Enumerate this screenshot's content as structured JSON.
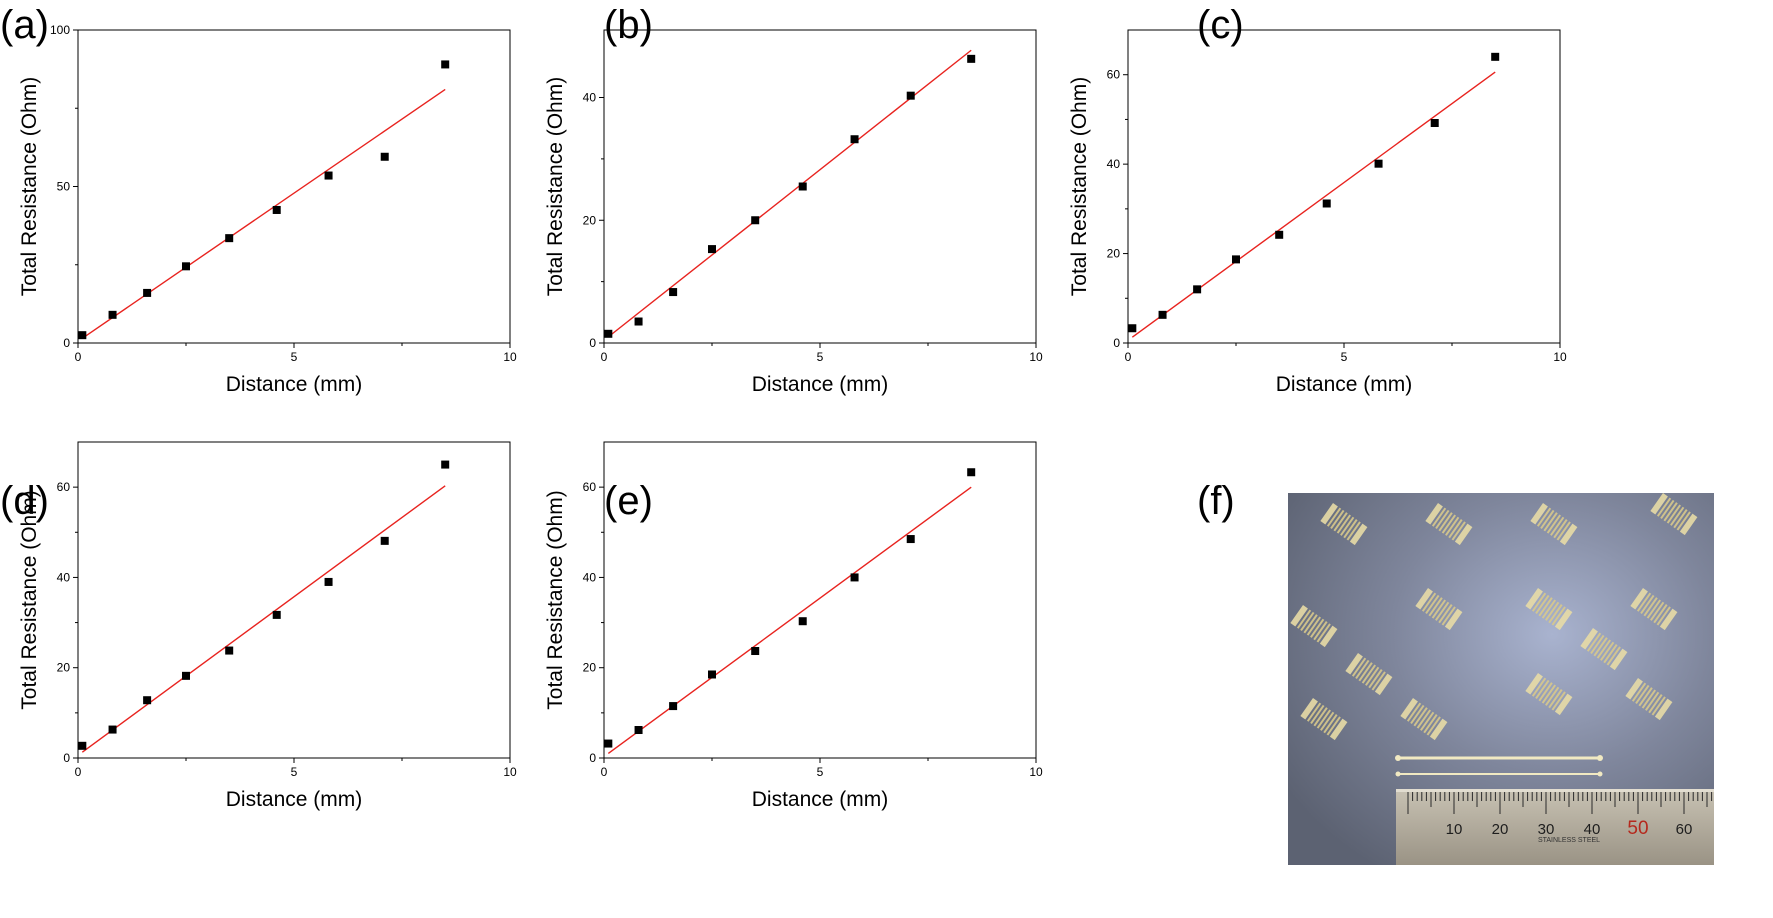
{
  "panels": [
    {
      "letter": "(a)"
    },
    {
      "letter": "(b)"
    },
    {
      "letter": "(c)"
    },
    {
      "letter": "(d)"
    },
    {
      "letter": "(e)"
    },
    {
      "letter": "(f)"
    }
  ],
  "colors": {
    "fit_line": "#e8231f",
    "points": "#000000"
  },
  "photo": {
    "ruler_ticks": [
      "10",
      "20",
      "30",
      "40",
      "50",
      "60"
    ],
    "ruler_text": "STAINLESS STEEL",
    "ruler_highlight_color": "#b5291d"
  },
  "chart_data": [
    {
      "type": "scatter",
      "panel": "(a)",
      "xlabel": "Distance (mm)",
      "ylabel": "Total Resistance (Ohm)",
      "xlim": [
        0,
        10
      ],
      "ylim": [
        0,
        100
      ],
      "xticks": [
        0,
        5,
        10
      ],
      "yticks": [
        0,
        50,
        100
      ],
      "x": [
        0.1,
        0.8,
        1.6,
        2.5,
        3.5,
        4.6,
        5.8,
        7.1,
        8.5
      ],
      "y": [
        2.5,
        9,
        16,
        24.5,
        33.5,
        42.5,
        53.5,
        59.5,
        89
      ],
      "fit": {
        "x0": 0.1,
        "y0": 1.5,
        "x1": 8.5,
        "y1": 81
      }
    },
    {
      "type": "scatter",
      "panel": "(b)",
      "xlabel": "Distance (mm)",
      "ylabel": "Total Resistance (Ohm)",
      "xlim": [
        0,
        10
      ],
      "ylim": [
        0,
        51
      ],
      "xticks": [
        0,
        5,
        10
      ],
      "yticks": [
        0,
        20,
        40
      ],
      "x": [
        0.1,
        0.8,
        1.6,
        2.5,
        3.5,
        4.6,
        5.8,
        7.1,
        8.5
      ],
      "y": [
        1.5,
        3.5,
        8.3,
        15.3,
        20,
        25.5,
        33.2,
        40.3,
        46.3
      ],
      "fit": {
        "x0": 0.1,
        "y0": 1,
        "x1": 8.5,
        "y1": 47.7
      }
    },
    {
      "type": "scatter",
      "panel": "(c)",
      "xlabel": "Distance (mm)",
      "ylabel": "Total Resistance (Ohm)",
      "xlim": [
        0,
        10
      ],
      "ylim": [
        0,
        70
      ],
      "xticks": [
        0,
        5,
        10
      ],
      "yticks": [
        0,
        20,
        40,
        60
      ],
      "x": [
        0.1,
        0.8,
        1.6,
        2.5,
        3.5,
        4.6,
        5.8,
        7.1,
        8.5
      ],
      "y": [
        3.3,
        6.3,
        12,
        18.7,
        24.2,
        31.2,
        40.1,
        49.2,
        64
      ],
      "fit": {
        "x0": 0.1,
        "y0": 1.3,
        "x1": 8.5,
        "y1": 60.6
      }
    },
    {
      "type": "scatter",
      "panel": "(d)",
      "xlabel": "Distance (mm)",
      "ylabel": "Total Resistance (Ohm)",
      "xlim": [
        0,
        10
      ],
      "ylim": [
        0,
        70
      ],
      "xticks": [
        0,
        5,
        10
      ],
      "yticks": [
        0,
        20,
        40,
        60
      ],
      "x": [
        0.1,
        0.8,
        1.6,
        2.5,
        3.5,
        4.6,
        5.8,
        7.1,
        8.5
      ],
      "y": [
        2.7,
        6.3,
        12.8,
        18.2,
        23.8,
        31.7,
        39,
        48.1,
        65
      ],
      "fit": {
        "x0": 0.1,
        "y0": 1.3,
        "x1": 8.5,
        "y1": 60.3
      }
    },
    {
      "type": "scatter",
      "panel": "(e)",
      "xlabel": "Distance (mm)",
      "ylabel": "Total Resistance (Ohm)",
      "xlim": [
        0,
        10
      ],
      "ylim": [
        0,
        70
      ],
      "xticks": [
        0,
        5,
        10
      ],
      "yticks": [
        0,
        20,
        40,
        60
      ],
      "x": [
        0.1,
        0.8,
        1.6,
        2.5,
        3.5,
        4.6,
        5.8,
        7.1,
        8.5
      ],
      "y": [
        3.2,
        6.2,
        11.5,
        18.5,
        23.7,
        30.3,
        40,
        48.5,
        63.3
      ],
      "fit": {
        "x0": 0.1,
        "y0": 1,
        "x1": 8.5,
        "y1": 60
      }
    }
  ]
}
